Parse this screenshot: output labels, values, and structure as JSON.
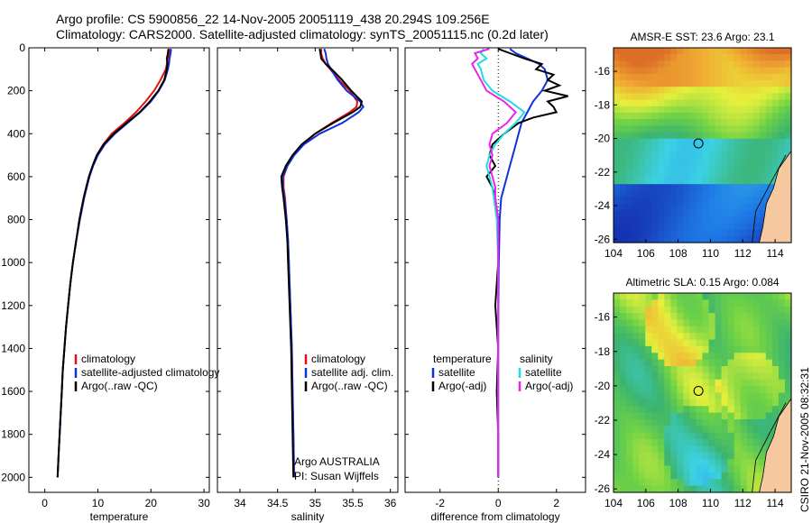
{
  "title": {
    "line1": "Argo profile: CS 5900856_22 14-Nov-2005 20051119_438 20.294S 109.256E",
    "line2": "Climatology: CARS2000. Satellite-adjusted climatology: synTS_20051115.nc (0.2d later)"
  },
  "footer": {
    "owner": "Argo AUSTRALIA",
    "pi": "PI: Susan Wijffels",
    "stamp": "CSIRO 21-Nov-2005 08:32:31"
  },
  "colors": {
    "climatology": "#e01010",
    "satellite": "#1030e0",
    "argo": "#000000",
    "argo_adj_salinity": "#ee22ee",
    "satellite_salinity": "#22dddd"
  },
  "chart_data": [
    {
      "type": "line",
      "xlabel": "temperature",
      "ylabel": "",
      "xlim": [
        -3,
        31
      ],
      "ylim": [
        2070,
        0
      ],
      "xticks": [
        "0",
        "10",
        "20",
        "30"
      ],
      "yticks": [
        "0",
        "200",
        "400",
        "600",
        "800",
        "1000",
        "1200",
        "1400",
        "1600",
        "1800",
        "2000"
      ],
      "legend": [
        "climatology",
        "satellite-adjusted climatology",
        "Argo(..raw -QC)"
      ],
      "legend_position": "bottom-right",
      "y": [
        5,
        25,
        50,
        75,
        100,
        150,
        200,
        250,
        300,
        350,
        400,
        450,
        500,
        550,
        600,
        650,
        700,
        800,
        900,
        1000,
        1100,
        1200,
        1300,
        1400,
        1500,
        1600,
        1700,
        1800,
        1900,
        2000
      ],
      "series": [
        {
          "name": "climatology",
          "color": "#e01010",
          "values": [
            23.5,
            23.4,
            23.2,
            23.0,
            22.8,
            21.8,
            20.6,
            19.0,
            17.2,
            15.0,
            12.6,
            11.0,
            9.8,
            9.0,
            8.4,
            7.9,
            7.4,
            6.6,
            5.9,
            5.3,
            4.8,
            4.4,
            4.0,
            3.7,
            3.4,
            3.2,
            3.0,
            2.8,
            2.6,
            2.4
          ]
        },
        {
          "name": "satellite-adjusted climatology",
          "color": "#1030e0",
          "values": [
            23.8,
            23.7,
            23.5,
            23.4,
            23.2,
            22.6,
            21.5,
            20.0,
            18.0,
            15.6,
            13.2,
            11.3,
            10.0,
            9.1,
            8.4,
            7.9,
            7.4,
            6.6,
            5.9,
            5.3,
            4.8,
            4.4,
            4.0,
            3.7,
            3.4,
            3.2,
            3.0,
            2.8,
            2.6,
            2.4
          ]
        },
        {
          "name": "Argo(..raw -QC)",
          "color": "#000000",
          "values": [
            23.3,
            23.2,
            23.0,
            23.1,
            23.0,
            22.5,
            21.4,
            19.8,
            17.9,
            15.4,
            13.0,
            11.1,
            9.8,
            9.0,
            8.3,
            7.8,
            7.3,
            6.5,
            5.9,
            5.3,
            4.8,
            4.4,
            4.0,
            3.7,
            3.4,
            3.2,
            3.0,
            2.8,
            2.6,
            2.4
          ]
        }
      ]
    },
    {
      "type": "line",
      "xlabel": "salinity",
      "xlim": [
        33.7,
        36.1
      ],
      "ylim": [
        2070,
        0
      ],
      "xticks": [
        "34",
        "34.5",
        "35",
        "35.5",
        "36"
      ],
      "legend": [
        "climatology",
        "satellite adj. clim.",
        "Argo(..raw -QC)"
      ],
      "legend_position": "bottom-right",
      "y": [
        5,
        25,
        50,
        75,
        100,
        150,
        200,
        250,
        275,
        300,
        350,
        400,
        450,
        500,
        550,
        600,
        650,
        700,
        800,
        900,
        1000,
        1200,
        1400,
        1600,
        1800,
        2000
      ],
      "series": [
        {
          "name": "climatology",
          "color": "#e01010",
          "values": [
            35.08,
            35.08,
            35.1,
            35.14,
            35.2,
            35.32,
            35.46,
            35.56,
            35.55,
            35.46,
            35.22,
            35.0,
            34.84,
            34.72,
            34.63,
            34.58,
            34.58,
            34.6,
            34.62,
            34.64,
            34.65,
            34.67,
            34.69,
            34.7,
            34.71,
            34.72
          ]
        },
        {
          "name": "satellite adj. clim.",
          "color": "#1030e0",
          "values": [
            35.12,
            35.14,
            35.15,
            35.17,
            35.21,
            35.3,
            35.42,
            35.6,
            35.64,
            35.58,
            35.36,
            35.06,
            34.85,
            34.72,
            34.63,
            34.57,
            34.57,
            34.59,
            34.62,
            34.64,
            34.65,
            34.67,
            34.69,
            34.7,
            34.71,
            34.72
          ]
        },
        {
          "name": "Argo(..raw -QC)",
          "color": "#000000",
          "values": [
            35.06,
            35.07,
            35.08,
            35.14,
            35.22,
            35.36,
            35.48,
            35.62,
            35.6,
            35.5,
            35.24,
            35.0,
            34.82,
            34.7,
            34.61,
            34.55,
            34.56,
            34.58,
            34.61,
            34.63,
            34.64,
            34.66,
            34.68,
            34.69,
            34.7,
            34.71
          ]
        }
      ]
    },
    {
      "type": "line",
      "xlabel": "difference from climatology",
      "xlim": [
        -3.2,
        3.0
      ],
      "ylim": [
        2070,
        0
      ],
      "xticks": [
        "-2",
        "0",
        "2"
      ],
      "legend_temperature": [
        "temperature",
        "satellite",
        "Argo(-adj)"
      ],
      "legend_salinity": [
        "salinity",
        "satellite",
        "Argo(-adj)"
      ],
      "legend_position": "bottom",
      "series": [
        {
          "name": "satellite",
          "color": "#1030e0",
          "y": [
            5,
            25,
            50,
            75,
            100,
            150,
            200,
            250,
            300,
            350,
            400,
            450,
            500,
            550,
            600,
            650,
            700,
            800,
            1000,
            1200,
            1400,
            1600,
            1800,
            2000
          ],
          "values": [
            0.4,
            0.6,
            1.0,
            1.4,
            1.6,
            1.7,
            1.5,
            1.2,
            1.0,
            0.8,
            0.7,
            0.6,
            0.5,
            0.4,
            0.3,
            0.2,
            0.1,
            0.05,
            0.02,
            0.01,
            0.0,
            0.0,
            0.0,
            0.0
          ]
        },
        {
          "name": "Argo(-adj)",
          "color": "#000000",
          "y": [
            5,
            25,
            50,
            75,
            100,
            125,
            150,
            175,
            200,
            225,
            250,
            275,
            300,
            325,
            350,
            400,
            450,
            500,
            550,
            600,
            650,
            700,
            800,
            1000,
            1200,
            1400,
            1600,
            1800,
            2000
          ],
          "values": [
            0.0,
            0.4,
            0.9,
            1.5,
            1.3,
            1.9,
            1.7,
            2.1,
            1.6,
            2.4,
            1.7,
            1.9,
            2.0,
            1.2,
            0.7,
            0.2,
            -0.2,
            -0.3,
            -0.1,
            -0.4,
            -0.2,
            -0.1,
            0.0,
            0.0,
            -0.1,
            0.0,
            -0.05,
            0.0,
            0.0
          ]
        },
        {
          "name": "salinity satellite",
          "color": "#22dddd",
          "y": [
            5,
            25,
            50,
            75,
            100,
            150,
            200,
            250,
            300,
            350,
            400,
            450,
            500,
            550,
            600,
            650,
            700,
            800,
            1000,
            1200,
            1400,
            1600,
            1800,
            2000
          ],
          "values": [
            -0.5,
            -0.6,
            -0.4,
            -0.7,
            -0.6,
            -0.5,
            -0.2,
            0.4,
            0.9,
            0.6,
            0.2,
            -0.1,
            -0.3,
            -0.4,
            -0.3,
            -0.2,
            -0.15,
            -0.05,
            0.0,
            0.0,
            0.0,
            0.0,
            0.0,
            0.0
          ]
        },
        {
          "name": "salinity Argo(-adj)",
          "color": "#ee22ee",
          "y": [
            5,
            25,
            50,
            75,
            100,
            150,
            200,
            250,
            300,
            350,
            400,
            450,
            500,
            550,
            600,
            650,
            700,
            800,
            1000,
            1200,
            1400,
            1600,
            1800,
            2000
          ],
          "values": [
            -0.3,
            -0.8,
            -0.7,
            -0.9,
            -0.8,
            -0.6,
            -0.4,
            0.2,
            0.6,
            0.3,
            -0.2,
            -0.3,
            -0.2,
            -0.3,
            -0.2,
            -0.1,
            -0.1,
            0.0,
            0.0,
            0.0,
            0.0,
            0.0,
            0.0,
            0.0
          ]
        }
      ]
    },
    {
      "type": "heatmap",
      "title": "AMSR-E SST: 23.6 Argo: 23.1",
      "xlim": [
        104,
        115
      ],
      "ylim": [
        -26.2,
        -14.6
      ],
      "xticks": [
        "104",
        "106",
        "108",
        "110",
        "112",
        "114"
      ],
      "yticks": [
        "-16",
        "-18",
        "-20",
        "-22",
        "-24",
        "-26"
      ],
      "marker": {
        "lon": 109.256,
        "lat": -20.294
      }
    },
    {
      "type": "heatmap",
      "title": "Altimetric SLA: 0.15 Argo: 0.084",
      "xlim": [
        104,
        115
      ],
      "ylim": [
        -26.2,
        -14.6
      ],
      "xticks": [
        "104",
        "106",
        "108",
        "110",
        "112",
        "114"
      ],
      "yticks": [
        "-16",
        "-18",
        "-20",
        "-22",
        "-24",
        "-26"
      ],
      "marker": {
        "lon": 109.256,
        "lat": -20.294
      }
    }
  ]
}
